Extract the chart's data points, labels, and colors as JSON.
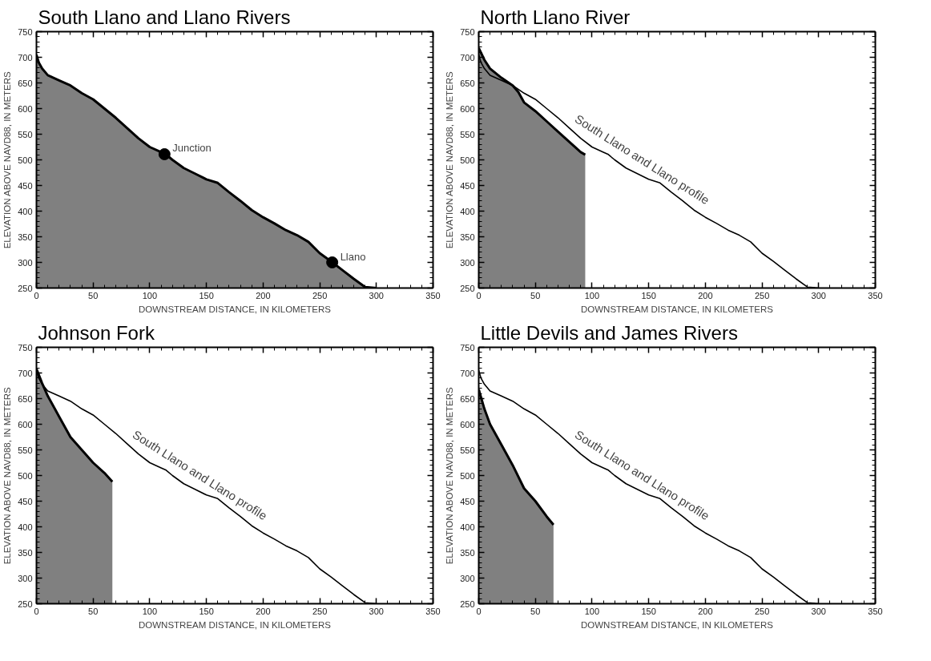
{
  "chart_data": [
    {
      "type": "area",
      "title": "South Llano and Llano Rivers",
      "xlabel": "DOWNSTREAM DISTANCE, IN KILOMETERS",
      "ylabel": "ELEVATION ABOVE NAVD88, IN METERS",
      "xlim": [
        0,
        350
      ],
      "ylim": [
        250,
        750
      ],
      "xticks": [
        0,
        50,
        100,
        150,
        200,
        250,
        300,
        350
      ],
      "yticks": [
        250,
        300,
        350,
        400,
        450,
        500,
        550,
        600,
        650,
        700,
        750
      ],
      "grid": false,
      "legend": false,
      "series": [
        {
          "color": "#808080",
          "x": [
            0,
            2,
            5,
            10,
            20,
            30,
            40,
            50,
            60,
            70,
            80,
            90,
            100,
            110,
            114,
            120,
            130,
            140,
            150,
            160,
            170,
            180,
            190,
            200,
            210,
            220,
            230,
            240,
            250,
            260,
            270,
            280,
            290,
            300
          ],
          "values": [
            705,
            690,
            678,
            665,
            655,
            645,
            630,
            618,
            600,
            582,
            562,
            542,
            525,
            515,
            511,
            500,
            484,
            473,
            462,
            455,
            437,
            420,
            402,
            388,
            376,
            363,
            353,
            340,
            318,
            302,
            285,
            268,
            252,
            250
          ]
        },
        {
          "type": "scatter",
          "marker": "circle",
          "color": "#000000",
          "x": [
            113,
            261
          ],
          "values": [
            511,
            300
          ]
        }
      ],
      "annotations": [
        {
          "text": "Junction",
          "x": 113,
          "y": 511
        },
        {
          "text": "Llano",
          "x": 261,
          "y": 300
        }
      ]
    },
    {
      "type": "area",
      "title": "North Llano River",
      "xlabel": "DOWNSTREAM DISTANCE, IN KILOMETERS",
      "ylabel": "ELEVATION ABOVE NAVD88, IN METERS",
      "xlim": [
        0,
        350
      ],
      "ylim": [
        250,
        750
      ],
      "xticks": [
        0,
        50,
        100,
        150,
        200,
        250,
        300,
        350
      ],
      "yticks": [
        250,
        300,
        350,
        400,
        450,
        500,
        550,
        600,
        650,
        700,
        750
      ],
      "grid": false,
      "legend": false,
      "series": [
        {
          "color": "#808080",
          "x": [
            0,
            5,
            10,
            20,
            30,
            35,
            40,
            50,
            60,
            70,
            80,
            90,
            94
          ],
          "values": [
            718,
            695,
            678,
            660,
            645,
            632,
            612,
            595,
            575,
            555,
            535,
            515,
            510
          ]
        },
        {
          "type": "line",
          "name": "South Llano and Llano profile",
          "color": "#000000",
          "x": [
            0,
            2,
            5,
            10,
            20,
            30,
            40,
            50,
            60,
            70,
            80,
            90,
            100,
            110,
            114,
            120,
            130,
            140,
            150,
            160,
            170,
            180,
            190,
            200,
            210,
            220,
            230,
            240,
            250,
            260,
            270,
            280,
            290,
            300
          ],
          "values": [
            705,
            690,
            678,
            665,
            655,
            645,
            630,
            618,
            600,
            582,
            562,
            542,
            525,
            515,
            511,
            500,
            484,
            473,
            462,
            455,
            437,
            420,
            402,
            388,
            376,
            363,
            353,
            340,
            318,
            302,
            285,
            268,
            252,
            250
          ]
        }
      ]
    },
    {
      "type": "area",
      "title": "Johnson Fork",
      "xlabel": "DOWNSTREAM DISTANCE, IN KILOMETERS",
      "ylabel": "ELEVATION ABOVE NAVD88, IN METERS",
      "xlim": [
        0,
        350
      ],
      "ylim": [
        250,
        750
      ],
      "xticks": [
        0,
        50,
        100,
        150,
        200,
        250,
        300,
        350
      ],
      "yticks": [
        250,
        300,
        350,
        400,
        450,
        500,
        550,
        600,
        650,
        700,
        750
      ],
      "grid": false,
      "legend": false,
      "series": [
        {
          "color": "#808080",
          "x": [
            0,
            5,
            10,
            20,
            30,
            40,
            50,
            60,
            67
          ],
          "values": [
            708,
            680,
            655,
            615,
            575,
            550,
            525,
            505,
            488
          ]
        },
        {
          "type": "line",
          "name": "South Llano and Llano profile",
          "color": "#000000",
          "x": [
            0,
            2,
            5,
            10,
            20,
            30,
            40,
            50,
            60,
            70,
            80,
            90,
            100,
            110,
            114,
            120,
            130,
            140,
            150,
            160,
            170,
            180,
            190,
            200,
            210,
            220,
            230,
            240,
            250,
            260,
            270,
            280,
            290,
            300
          ],
          "values": [
            705,
            690,
            678,
            665,
            655,
            645,
            630,
            618,
            600,
            582,
            562,
            542,
            525,
            515,
            511,
            500,
            484,
            473,
            462,
            455,
            437,
            420,
            402,
            388,
            376,
            363,
            353,
            340,
            318,
            302,
            285,
            268,
            252,
            250
          ]
        }
      ]
    },
    {
      "type": "area",
      "title": "Little Devils and James Rivers",
      "xlabel": "DOWNSTREAM DISTANCE, IN KILOMETERS",
      "ylabel": "ELEVATION ABOVE NAVD88, IN METERS",
      "xlim": [
        0,
        350
      ],
      "ylim": [
        250,
        750
      ],
      "xticks": [
        0,
        50,
        100,
        150,
        200,
        250,
        300,
        350
      ],
      "yticks": [
        250,
        300,
        350,
        400,
        450,
        500,
        550,
        600,
        650,
        700,
        750
      ],
      "grid": false,
      "legend": false,
      "series": [
        {
          "color": "#808080",
          "x": [
            0,
            5,
            10,
            20,
            30,
            40,
            50,
            60,
            66
          ],
          "values": [
            668,
            630,
            600,
            560,
            520,
            475,
            450,
            420,
            404
          ]
        },
        {
          "type": "line",
          "name": "South Llano and Llano profile",
          "color": "#000000",
          "x": [
            0,
            2,
            5,
            10,
            20,
            30,
            40,
            50,
            60,
            70,
            80,
            90,
            100,
            110,
            114,
            120,
            130,
            140,
            150,
            160,
            170,
            180,
            190,
            200,
            210,
            220,
            230,
            240,
            250,
            260,
            270,
            280,
            290,
            300
          ],
          "values": [
            705,
            690,
            678,
            665,
            655,
            645,
            630,
            618,
            600,
            582,
            562,
            542,
            525,
            515,
            511,
            500,
            484,
            473,
            462,
            455,
            437,
            420,
            402,
            388,
            376,
            363,
            353,
            340,
            318,
            302,
            285,
            268,
            252,
            250
          ]
        }
      ]
    }
  ]
}
